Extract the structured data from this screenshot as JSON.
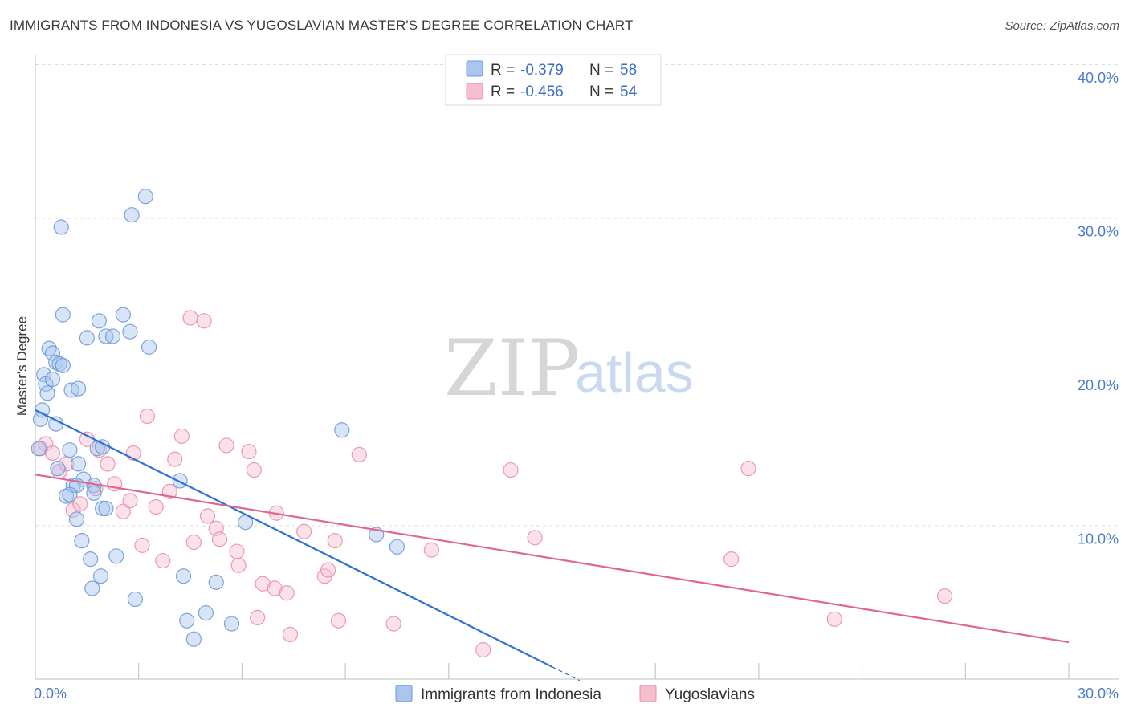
{
  "header": {
    "title": "IMMIGRANTS FROM INDONESIA VS YUGOSLAVIAN MASTER'S DEGREE CORRELATION CHART",
    "source": "Source: ZipAtlas.com"
  },
  "watermark": {
    "zip": "ZIP",
    "atlas": "atlas"
  },
  "legend": {
    "rows": [
      {
        "r_label": "R =",
        "r_value": "-0.379",
        "n_label": "N =",
        "n_value": "58"
      },
      {
        "r_label": "R =",
        "r_value": "-0.456",
        "n_label": "N =",
        "n_value": "54"
      }
    ]
  },
  "colors": {
    "series_a_fill": "#a9c6ee",
    "series_a_stroke": "#6f9ad6",
    "series_a_line": "#2f72d3",
    "series_b_fill": "#f6bfd0",
    "series_b_stroke": "#ea8fab",
    "series_b_line": "#e0668f",
    "tick_text": "#4a7cc9",
    "grid": "#dcdcdc"
  },
  "chart_data": {
    "type": "scatter",
    "title": "IMMIGRANTS FROM INDONESIA VS YUGOSLAVIAN MASTER'S DEGREE CORRELATION CHART",
    "xlabel": "",
    "ylabel": "Master's Degree",
    "xlim": [
      0,
      30
    ],
    "ylim": [
      0,
      40
    ],
    "x_tick_labels": [
      "0.0%",
      "30.0%"
    ],
    "y_ticks": [
      10,
      20,
      30,
      40
    ],
    "y_tick_labels": [
      "10.0%",
      "20.0%",
      "30.0%",
      "40.0%"
    ],
    "grid": true,
    "legend_position": "top-center",
    "series": [
      {
        "name": "Immigrants from Indonesia",
        "R": -0.379,
        "N": 58,
        "trend": {
          "x0": 0,
          "y0": 17.5,
          "x1": 15.0,
          "y1": 0.8,
          "dash_to_x": 15.8
        },
        "points": [
          [
            0.1,
            15.0
          ],
          [
            0.15,
            16.9
          ],
          [
            0.2,
            17.5
          ],
          [
            0.25,
            19.8
          ],
          [
            0.3,
            19.2
          ],
          [
            0.35,
            18.6
          ],
          [
            0.5,
            19.5
          ],
          [
            0.4,
            21.5
          ],
          [
            0.5,
            21.2
          ],
          [
            0.6,
            20.6
          ],
          [
            0.7,
            20.5
          ],
          [
            0.8,
            20.4
          ],
          [
            0.6,
            16.6
          ],
          [
            0.8,
            23.7
          ],
          [
            0.75,
            29.4
          ],
          [
            1.05,
            18.8
          ],
          [
            1.25,
            18.9
          ],
          [
            1.5,
            22.2
          ],
          [
            1.85,
            23.3
          ],
          [
            2.05,
            22.3
          ],
          [
            2.25,
            22.3
          ],
          [
            2.55,
            23.7
          ],
          [
            2.75,
            22.6
          ],
          [
            2.8,
            30.2
          ],
          [
            3.2,
            31.4
          ],
          [
            3.3,
            21.6
          ],
          [
            1.0,
            14.9
          ],
          [
            0.65,
            13.7
          ],
          [
            1.25,
            14.0
          ],
          [
            1.4,
            13.0
          ],
          [
            1.1,
            12.6
          ],
          [
            1.2,
            12.6
          ],
          [
            1.7,
            12.6
          ],
          [
            1.7,
            12.1
          ],
          [
            1.8,
            15.0
          ],
          [
            1.95,
            11.1
          ],
          [
            2.05,
            11.1
          ],
          [
            0.9,
            11.9
          ],
          [
            1.2,
            10.4
          ],
          [
            1.35,
            9.0
          ],
          [
            1.6,
            7.8
          ],
          [
            1.65,
            5.9
          ],
          [
            1.9,
            6.7
          ],
          [
            2.35,
            8.0
          ],
          [
            2.9,
            5.2
          ],
          [
            4.2,
            12.9
          ],
          [
            4.3,
            6.7
          ],
          [
            4.4,
            3.8
          ],
          [
            4.6,
            2.6
          ],
          [
            4.95,
            4.3
          ],
          [
            5.25,
            6.3
          ],
          [
            5.7,
            3.6
          ],
          [
            6.1,
            10.2
          ],
          [
            8.9,
            16.2
          ],
          [
            9.9,
            9.4
          ],
          [
            10.5,
            8.6
          ],
          [
            1.95,
            15.1
          ],
          [
            1.0,
            12.0
          ]
        ]
      },
      {
        "name": "Yugoslavians",
        "R": -0.456,
        "N": 54,
        "trend": {
          "x0": 0,
          "y0": 13.3,
          "x1": 30.0,
          "y1": 2.4
        },
        "points": [
          [
            0.15,
            15.0
          ],
          [
            0.3,
            15.3
          ],
          [
            0.5,
            14.7
          ],
          [
            0.7,
            13.5
          ],
          [
            0.9,
            14.0
          ],
          [
            1.1,
            11.0
          ],
          [
            1.3,
            11.4
          ],
          [
            1.5,
            15.6
          ],
          [
            1.75,
            12.4
          ],
          [
            1.85,
            14.9
          ],
          [
            2.1,
            14.0
          ],
          [
            2.3,
            12.7
          ],
          [
            2.55,
            10.9
          ],
          [
            2.75,
            11.6
          ],
          [
            2.85,
            14.7
          ],
          [
            3.1,
            8.7
          ],
          [
            3.25,
            17.1
          ],
          [
            3.5,
            11.2
          ],
          [
            3.7,
            7.7
          ],
          [
            3.9,
            12.2
          ],
          [
            4.05,
            14.3
          ],
          [
            4.25,
            15.8
          ],
          [
            4.6,
            8.9
          ],
          [
            4.5,
            23.5
          ],
          [
            4.9,
            23.3
          ],
          [
            5.0,
            10.6
          ],
          [
            5.25,
            9.8
          ],
          [
            5.35,
            9.1
          ],
          [
            5.55,
            15.2
          ],
          [
            5.85,
            8.3
          ],
          [
            5.9,
            7.4
          ],
          [
            6.2,
            14.8
          ],
          [
            6.35,
            13.6
          ],
          [
            6.45,
            4.0
          ],
          [
            6.6,
            6.2
          ],
          [
            6.95,
            5.9
          ],
          [
            7.0,
            10.8
          ],
          [
            7.3,
            5.6
          ],
          [
            7.4,
            2.9
          ],
          [
            7.8,
            9.6
          ],
          [
            8.4,
            6.7
          ],
          [
            8.5,
            7.1
          ],
          [
            8.7,
            9.0
          ],
          [
            8.8,
            3.8
          ],
          [
            9.4,
            14.6
          ],
          [
            10.4,
            3.6
          ],
          [
            11.5,
            8.4
          ],
          [
            13.0,
            1.9
          ],
          [
            13.8,
            13.6
          ],
          [
            14.5,
            9.2
          ],
          [
            20.2,
            7.8
          ],
          [
            20.7,
            13.7
          ],
          [
            23.2,
            3.9
          ],
          [
            26.4,
            5.4
          ]
        ]
      }
    ]
  },
  "bottom_legend": {
    "items": [
      {
        "label": "Immigrants from Indonesia"
      },
      {
        "label": "Yugoslavians"
      }
    ]
  }
}
